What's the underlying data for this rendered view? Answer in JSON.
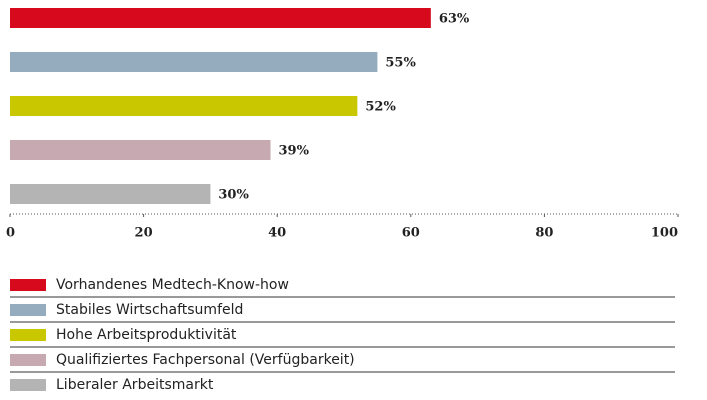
{
  "chart_data": {
    "type": "bar",
    "orientation": "horizontal",
    "categories": [
      "Vorhandenes Medtech-Know-how",
      "Stabiles Wirtschaftsumfeld",
      "Hohe Arbeitsproduktivität",
      "Qualifiziertes Fachpersonal (Verfügbarkeit)",
      "Liberaler Arbeitsmarkt"
    ],
    "values": [
      63,
      55,
      52,
      39,
      30
    ],
    "value_labels": [
      "63%",
      "55%",
      "52%",
      "39%",
      "30%"
    ],
    "colors": [
      "#d7091c",
      "#95acbf",
      "#c9c800",
      "#c7aab1",
      "#b4b4b4"
    ],
    "xlim": [
      0,
      100
    ],
    "xticks": [
      0,
      20,
      40,
      60,
      80,
      100
    ],
    "legend": "bottom"
  }
}
